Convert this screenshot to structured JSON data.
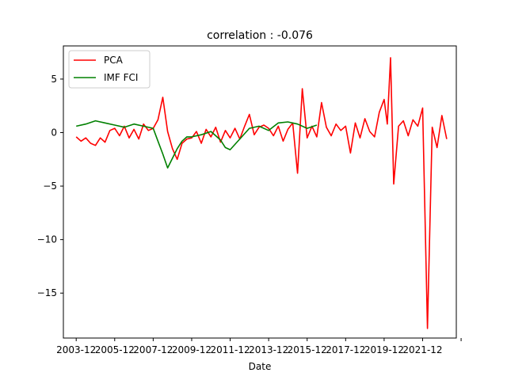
{
  "chart_data": {
    "type": "line",
    "title": "correlation : -0.076",
    "xlabel": "Date",
    "ylabel": "",
    "x_ticks": [
      "2003-12",
      "2005-12",
      "2007-12",
      "2009-12",
      "2011-12",
      "2013-12",
      "2015-12",
      "2017-12",
      "2019-12",
      "2021-12",
      ""
    ],
    "y_ticks": [
      "5",
      "0",
      "−5",
      "−10",
      "−15"
    ],
    "ylim": [
      -19.2,
      8.1
    ],
    "xlim": [
      "2003-04",
      "2023-09"
    ],
    "legend": {
      "position": "top-left",
      "entries": [
        "PCA",
        "IMF FCI"
      ]
    },
    "grid": false,
    "series": [
      {
        "name": "PCA",
        "color": "#ff0000",
        "x": [
          "2003-12",
          "2004-03",
          "2004-06",
          "2004-09",
          "2004-12",
          "2005-03",
          "2005-06",
          "2005-09",
          "2005-12",
          "2006-03",
          "2006-06",
          "2006-09",
          "2006-12",
          "2007-03",
          "2007-06",
          "2007-09",
          "2007-12",
          "2008-03",
          "2008-06",
          "2008-09",
          "2008-12",
          "2009-03",
          "2009-06",
          "2009-09",
          "2009-12",
          "2010-03",
          "2010-06",
          "2010-09",
          "2010-12",
          "2011-03",
          "2011-06",
          "2011-09",
          "2011-12",
          "2012-03",
          "2012-06",
          "2012-09",
          "2012-12",
          "2013-03",
          "2013-06",
          "2013-09",
          "2013-12",
          "2014-03",
          "2014-06",
          "2014-09",
          "2014-12",
          "2015-03",
          "2015-06",
          "2015-09",
          "2015-12",
          "2016-03",
          "2016-06",
          "2016-09",
          "2016-12",
          "2017-03",
          "2017-06",
          "2017-09",
          "2017-12",
          "2018-03",
          "2018-06",
          "2018-09",
          "2018-12",
          "2019-03",
          "2019-06",
          "2019-09",
          "2019-12",
          "2020-02",
          "2020-04",
          "2020-06",
          "2020-09",
          "2020-12",
          "2021-03",
          "2021-06",
          "2021-09",
          "2021-12",
          "2022-03",
          "2022-06",
          "2022-09",
          "2022-12",
          "2023-03"
        ],
        "y": [
          -0.4,
          -0.8,
          -0.5,
          -1.0,
          -1.2,
          -0.5,
          -0.9,
          0.2,
          0.4,
          -0.3,
          0.6,
          -0.5,
          0.3,
          -0.6,
          0.8,
          0.2,
          0.4,
          1.2,
          3.3,
          0.1,
          -1.5,
          -2.5,
          -1.0,
          -0.6,
          -0.5,
          0.1,
          -1.0,
          0.3,
          -0.4,
          0.5,
          -0.9,
          0.2,
          -0.5,
          0.4,
          -0.6,
          0.6,
          1.7,
          -0.2,
          0.5,
          0.7,
          0.4,
          -0.3,
          0.6,
          -0.8,
          0.3,
          0.9,
          -3.8,
          4.1,
          -0.5,
          0.6,
          -0.4,
          2.8,
          0.5,
          -0.3,
          0.8,
          0.2,
          0.6,
          -1.9,
          0.9,
          -0.5,
          1.3,
          0.1,
          -0.4,
          1.9,
          3.1,
          0.8,
          7.0,
          -4.8,
          0.6,
          1.1,
          -0.3,
          1.2,
          0.6,
          2.3,
          -18.3,
          0.5,
          -1.4,
          1.6,
          -0.6
        ]
      },
      {
        "name": "IMF FCI",
        "color": "#008000",
        "x": [
          "2003-12",
          "2004-06",
          "2004-12",
          "2005-06",
          "2005-12",
          "2006-06",
          "2006-12",
          "2007-06",
          "2007-12",
          "2008-03",
          "2008-06",
          "2008-09",
          "2008-12",
          "2009-03",
          "2009-06",
          "2009-09",
          "2009-12",
          "2010-06",
          "2010-12",
          "2011-06",
          "2011-09",
          "2011-12",
          "2012-06",
          "2012-12",
          "2013-06",
          "2013-12",
          "2014-06",
          "2014-12",
          "2015-06",
          "2015-12",
          "2016-06"
        ],
        "y": [
          0.6,
          0.8,
          1.1,
          0.9,
          0.7,
          0.5,
          0.8,
          0.6,
          0.4,
          -0.8,
          -2.0,
          -3.3,
          -2.4,
          -1.5,
          -0.8,
          -0.4,
          -0.4,
          -0.2,
          0.1,
          -0.7,
          -1.4,
          -1.6,
          -0.6,
          0.4,
          0.6,
          0.2,
          0.9,
          1.0,
          0.8,
          0.4,
          0.7
        ]
      }
    ]
  }
}
